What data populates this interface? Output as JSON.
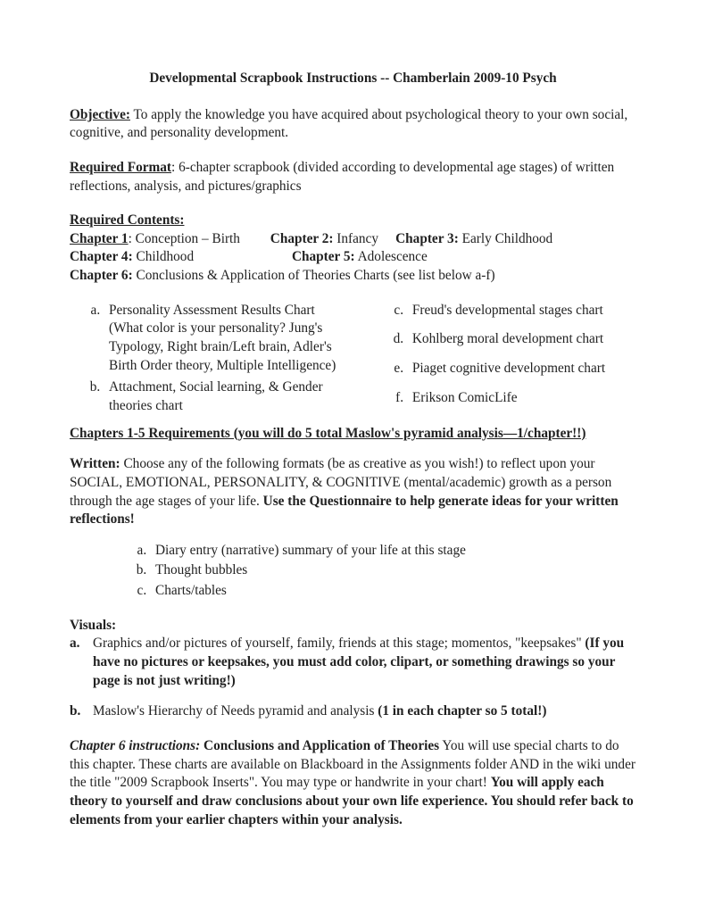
{
  "title": "Developmental Scrapbook Instructions -- Chamberlain 2009-10 Psych",
  "objective": {
    "label": "Objective:",
    "text": " To apply the knowledge you have acquired about psychological theory to your own social, cognitive, and personality development."
  },
  "required_format": {
    "label": "Required Format",
    "text": ": 6-chapter scrapbook (divided according to developmental age stages) of written reflections, analysis, and pictures/graphics"
  },
  "required_contents": {
    "label": "Required Contents:",
    "ch1_label": "Chapter 1",
    "ch1_text": ": Conception – Birth",
    "ch2_label": "Chapter 2:",
    "ch2_text": " Infancy",
    "ch3_label": "Chapter 3:",
    "ch3_text": " Early Childhood",
    "ch4_label": "Chapter 4:",
    "ch4_text": " Childhood",
    "ch5_label": "Chapter 5:",
    "ch5_text": " Adolescence",
    "ch6_label": "Chapter 6:",
    "ch6_text": " Conclusions & Application of Theories Charts (see list below a-f)"
  },
  "left_list": {
    "a": "Personality Assessment Results Chart (What color is your personality? Jung's Typology, Right brain/Left brain, Adler's Birth Order theory, Multiple Intelligence)",
    "b": "Attachment, Social learning, & Gender theories chart"
  },
  "right_list": {
    "c": "Freud's developmental stages chart",
    "d": "Kohlberg moral development chart",
    "e": "Piaget cognitive development chart",
    "f": "Erikson ComicLife"
  },
  "chapters_req": "Chapters 1-5 Requirements (you will do 5 total Maslow's pyramid analysis—1/chapter!!)",
  "written": {
    "label": "Written:",
    "text1": " Choose any of the following formats (be as creative as you wish!) to reflect upon your SOCIAL, EMOTIONAL, PERSONALITY, & COGNITIVE (mental/academic) growth as a person through the age stages of your life. ",
    "bold_tail": "Use the Questionnaire to help generate ideas for your written reflections!"
  },
  "format_list": {
    "a": "Diary entry (narrative) summary of your life at this stage",
    "b": "Thought bubbles",
    "c": "Charts/tables"
  },
  "visuals": {
    "label": "Visuals:",
    "a_text": "Graphics and/or pictures of yourself, family, friends at this stage; momentos, \"keepsakes\"  ",
    "a_bold": "(If you have no pictures or keepsakes, you must add color, clipart, or something drawings so your page is not just writing!)",
    "b_text": "Maslow's Hierarchy of Needs pyramid and analysis ",
    "b_bold": "(1 in each chapter so 5 total!)"
  },
  "ch6_instructions": {
    "label_italic": "Chapter 6 instructions:",
    "label_bold": " Conclusions and Application of Theories",
    "text1": "  You will use special charts to do this chapter. These charts are available on Blackboard in the Assignments folder AND in the wiki under the title \"2009 Scrapbook Inserts\". You may type or handwrite in your chart! ",
    "bold_tail": "You will apply each theory to yourself and draw conclusions about your own life experience. You should refer back to elements from your earlier chapters within your analysis."
  }
}
